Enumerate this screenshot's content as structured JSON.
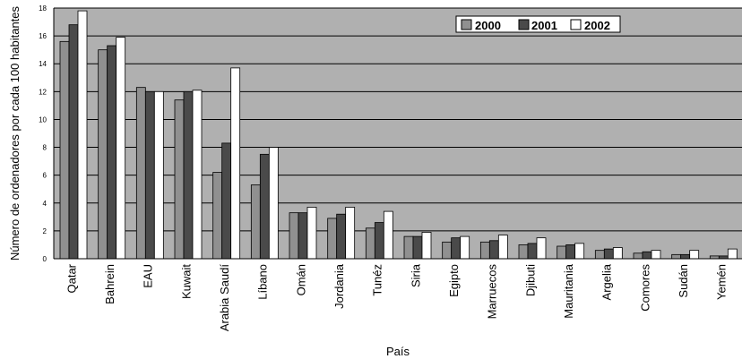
{
  "chart_data": {
    "type": "bar",
    "xlabel": "País",
    "ylabel": "Número de ordenadores por cada 100 habitantes",
    "ylim": [
      0,
      18
    ],
    "yticks": [
      0,
      2,
      4,
      6,
      8,
      10,
      12,
      14,
      16,
      18
    ],
    "grid": true,
    "legend_position": "top-right",
    "categories": [
      "Qatar",
      "Bahrein",
      "EAU",
      "Kuwait",
      "Arabia Saudí",
      "Líbano",
      "Omán",
      "Jordania",
      "Tunéz",
      "Siria",
      "Egipto",
      "Marruecos",
      "Djibuti",
      "Mauritania",
      "Argelia",
      "Comores",
      "Sudán",
      "Yemén"
    ],
    "series": [
      {
        "name": "2000",
        "color": "#909090",
        "values": [
          15.6,
          15.0,
          12.3,
          11.4,
          6.2,
          5.3,
          3.3,
          2.9,
          2.2,
          1.6,
          1.2,
          1.2,
          1.0,
          0.9,
          0.6,
          0.4,
          0.3,
          0.2
        ]
      },
      {
        "name": "2001",
        "color": "#4a4a4a",
        "values": [
          16.8,
          15.3,
          12.0,
          12.0,
          8.3,
          7.5,
          3.3,
          3.2,
          2.6,
          1.6,
          1.5,
          1.3,
          1.1,
          1.0,
          0.7,
          0.5,
          0.3,
          0.2
        ]
      },
      {
        "name": "2002",
        "color": "#ffffff",
        "values": [
          17.8,
          15.9,
          12.0,
          12.1,
          13.7,
          8.0,
          3.7,
          3.7,
          3.4,
          1.9,
          1.6,
          1.7,
          1.5,
          1.1,
          0.8,
          0.6,
          0.6,
          0.7
        ]
      }
    ],
    "colors": {
      "plot_background": "#b0b0b0",
      "gridline": "#000000"
    }
  }
}
